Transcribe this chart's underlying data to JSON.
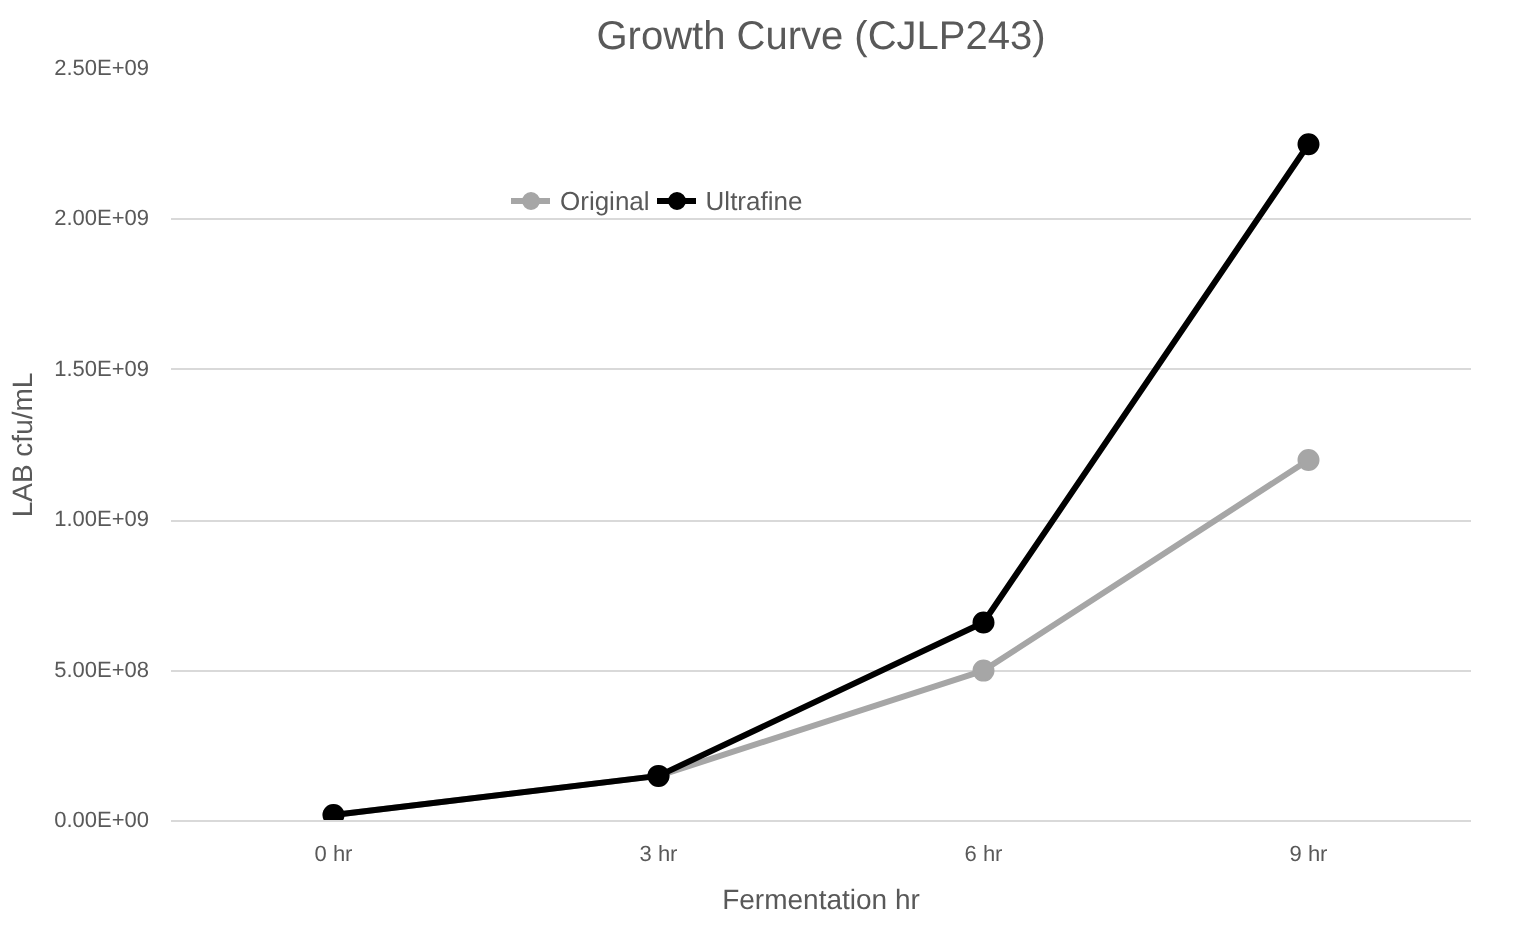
{
  "chart_data": {
    "type": "line",
    "title": "Growth Curve (CJLP243)",
    "xlabel": "Fermentation hr",
    "ylabel": "LAB cfu/mL",
    "categories": [
      "0 hr",
      "3 hr",
      "6 hr",
      "9 hr"
    ],
    "series": [
      {
        "name": "Original",
        "color": "#a6a6a6",
        "values": [
          20000000,
          150000000,
          500000000,
          1200000000
        ]
      },
      {
        "name": "Ultrafine",
        "color": "#000000",
        "values": [
          20000000,
          150000000,
          660000000,
          2250000000
        ]
      }
    ],
    "ylim": [
      0,
      2500000000
    ],
    "yticks": [
      {
        "value": 0,
        "label": "0.00E+00"
      },
      {
        "value": 500000000,
        "label": "5.00E+08"
      },
      {
        "value": 1000000000,
        "label": "1.00E+09"
      },
      {
        "value": 1500000000,
        "label": "1.50E+09"
      },
      {
        "value": 2000000000,
        "label": "2.00E+09"
      },
      {
        "value": 2500000000,
        "label": "2.50E+09"
      }
    ],
    "grid": "y",
    "legend": "top",
    "marker": "circle",
    "line_style": "solid"
  }
}
